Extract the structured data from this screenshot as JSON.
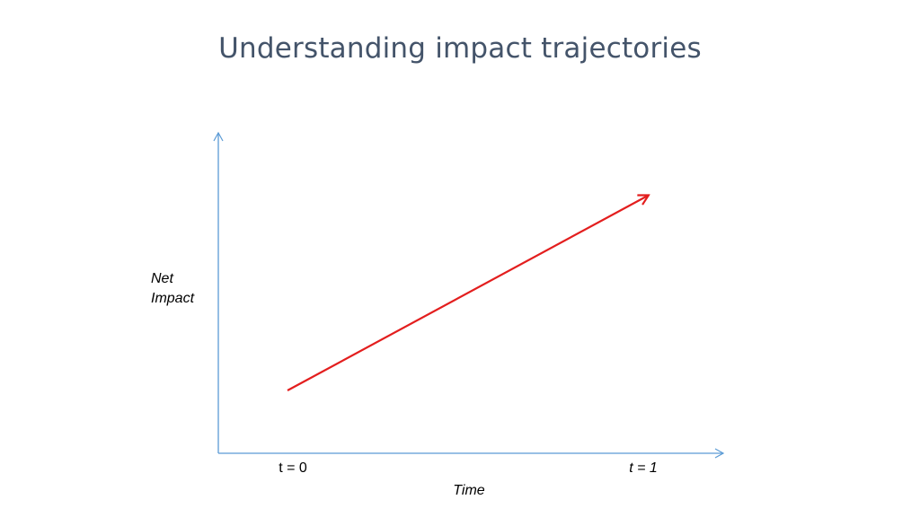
{
  "slide": {
    "title": "Understanding impact trajectories"
  },
  "diagram": {
    "y_axis_label_line1": "Net",
    "y_axis_label_line2": "Impact",
    "x_axis_label": "Time",
    "tick_start": "t = 0",
    "tick_end": "t = 1",
    "axis_color": "#5b9bd5",
    "trajectory_color": "#e31e1e"
  }
}
